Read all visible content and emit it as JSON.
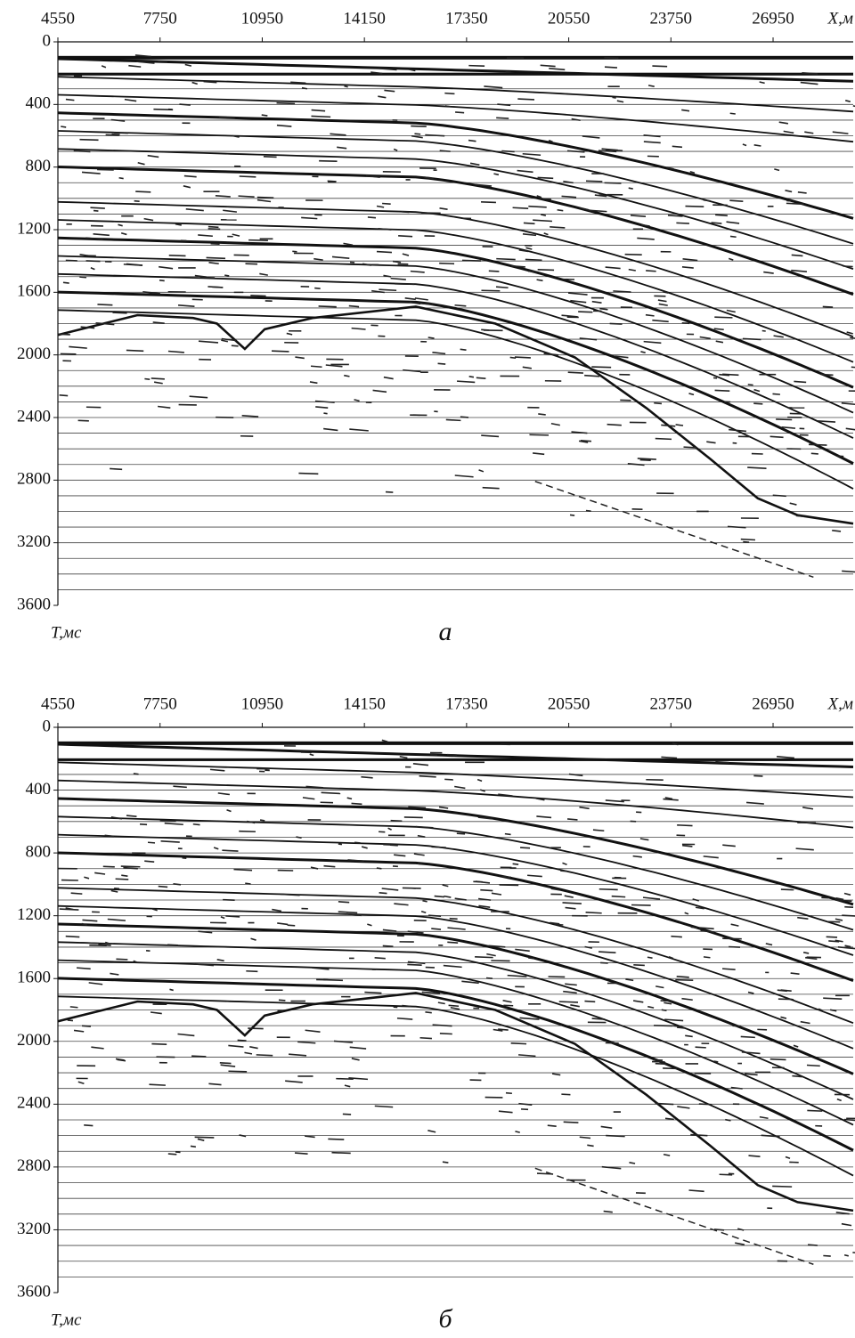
{
  "chart_data": [
    {
      "type": "seismic",
      "panel_label": "а",
      "x_label": "X,м",
      "y_label": "T,мс",
      "xlim": [
        4550,
        29460
      ],
      "xticks": [
        4550,
        7750,
        10950,
        14150,
        17350,
        20550,
        23750,
        26950
      ],
      "ylim": [
        3600,
        0
      ],
      "yticks": [
        0,
        400,
        800,
        1200,
        1600,
        2000,
        2400,
        2800,
        3200,
        3600
      ]
    },
    {
      "type": "seismic",
      "panel_label": "б",
      "x_label": "X,м",
      "y_label": "T,мс",
      "xlim": [
        4550,
        29460
      ],
      "xticks": [
        4550,
        7750,
        10950,
        14150,
        17350,
        20550,
        23750,
        26950
      ],
      "ylim": [
        3600,
        0
      ],
      "yticks": [
        0,
        400,
        800,
        1200,
        1600,
        2000,
        2400,
        2800,
        3200,
        3600
      ]
    }
  ]
}
